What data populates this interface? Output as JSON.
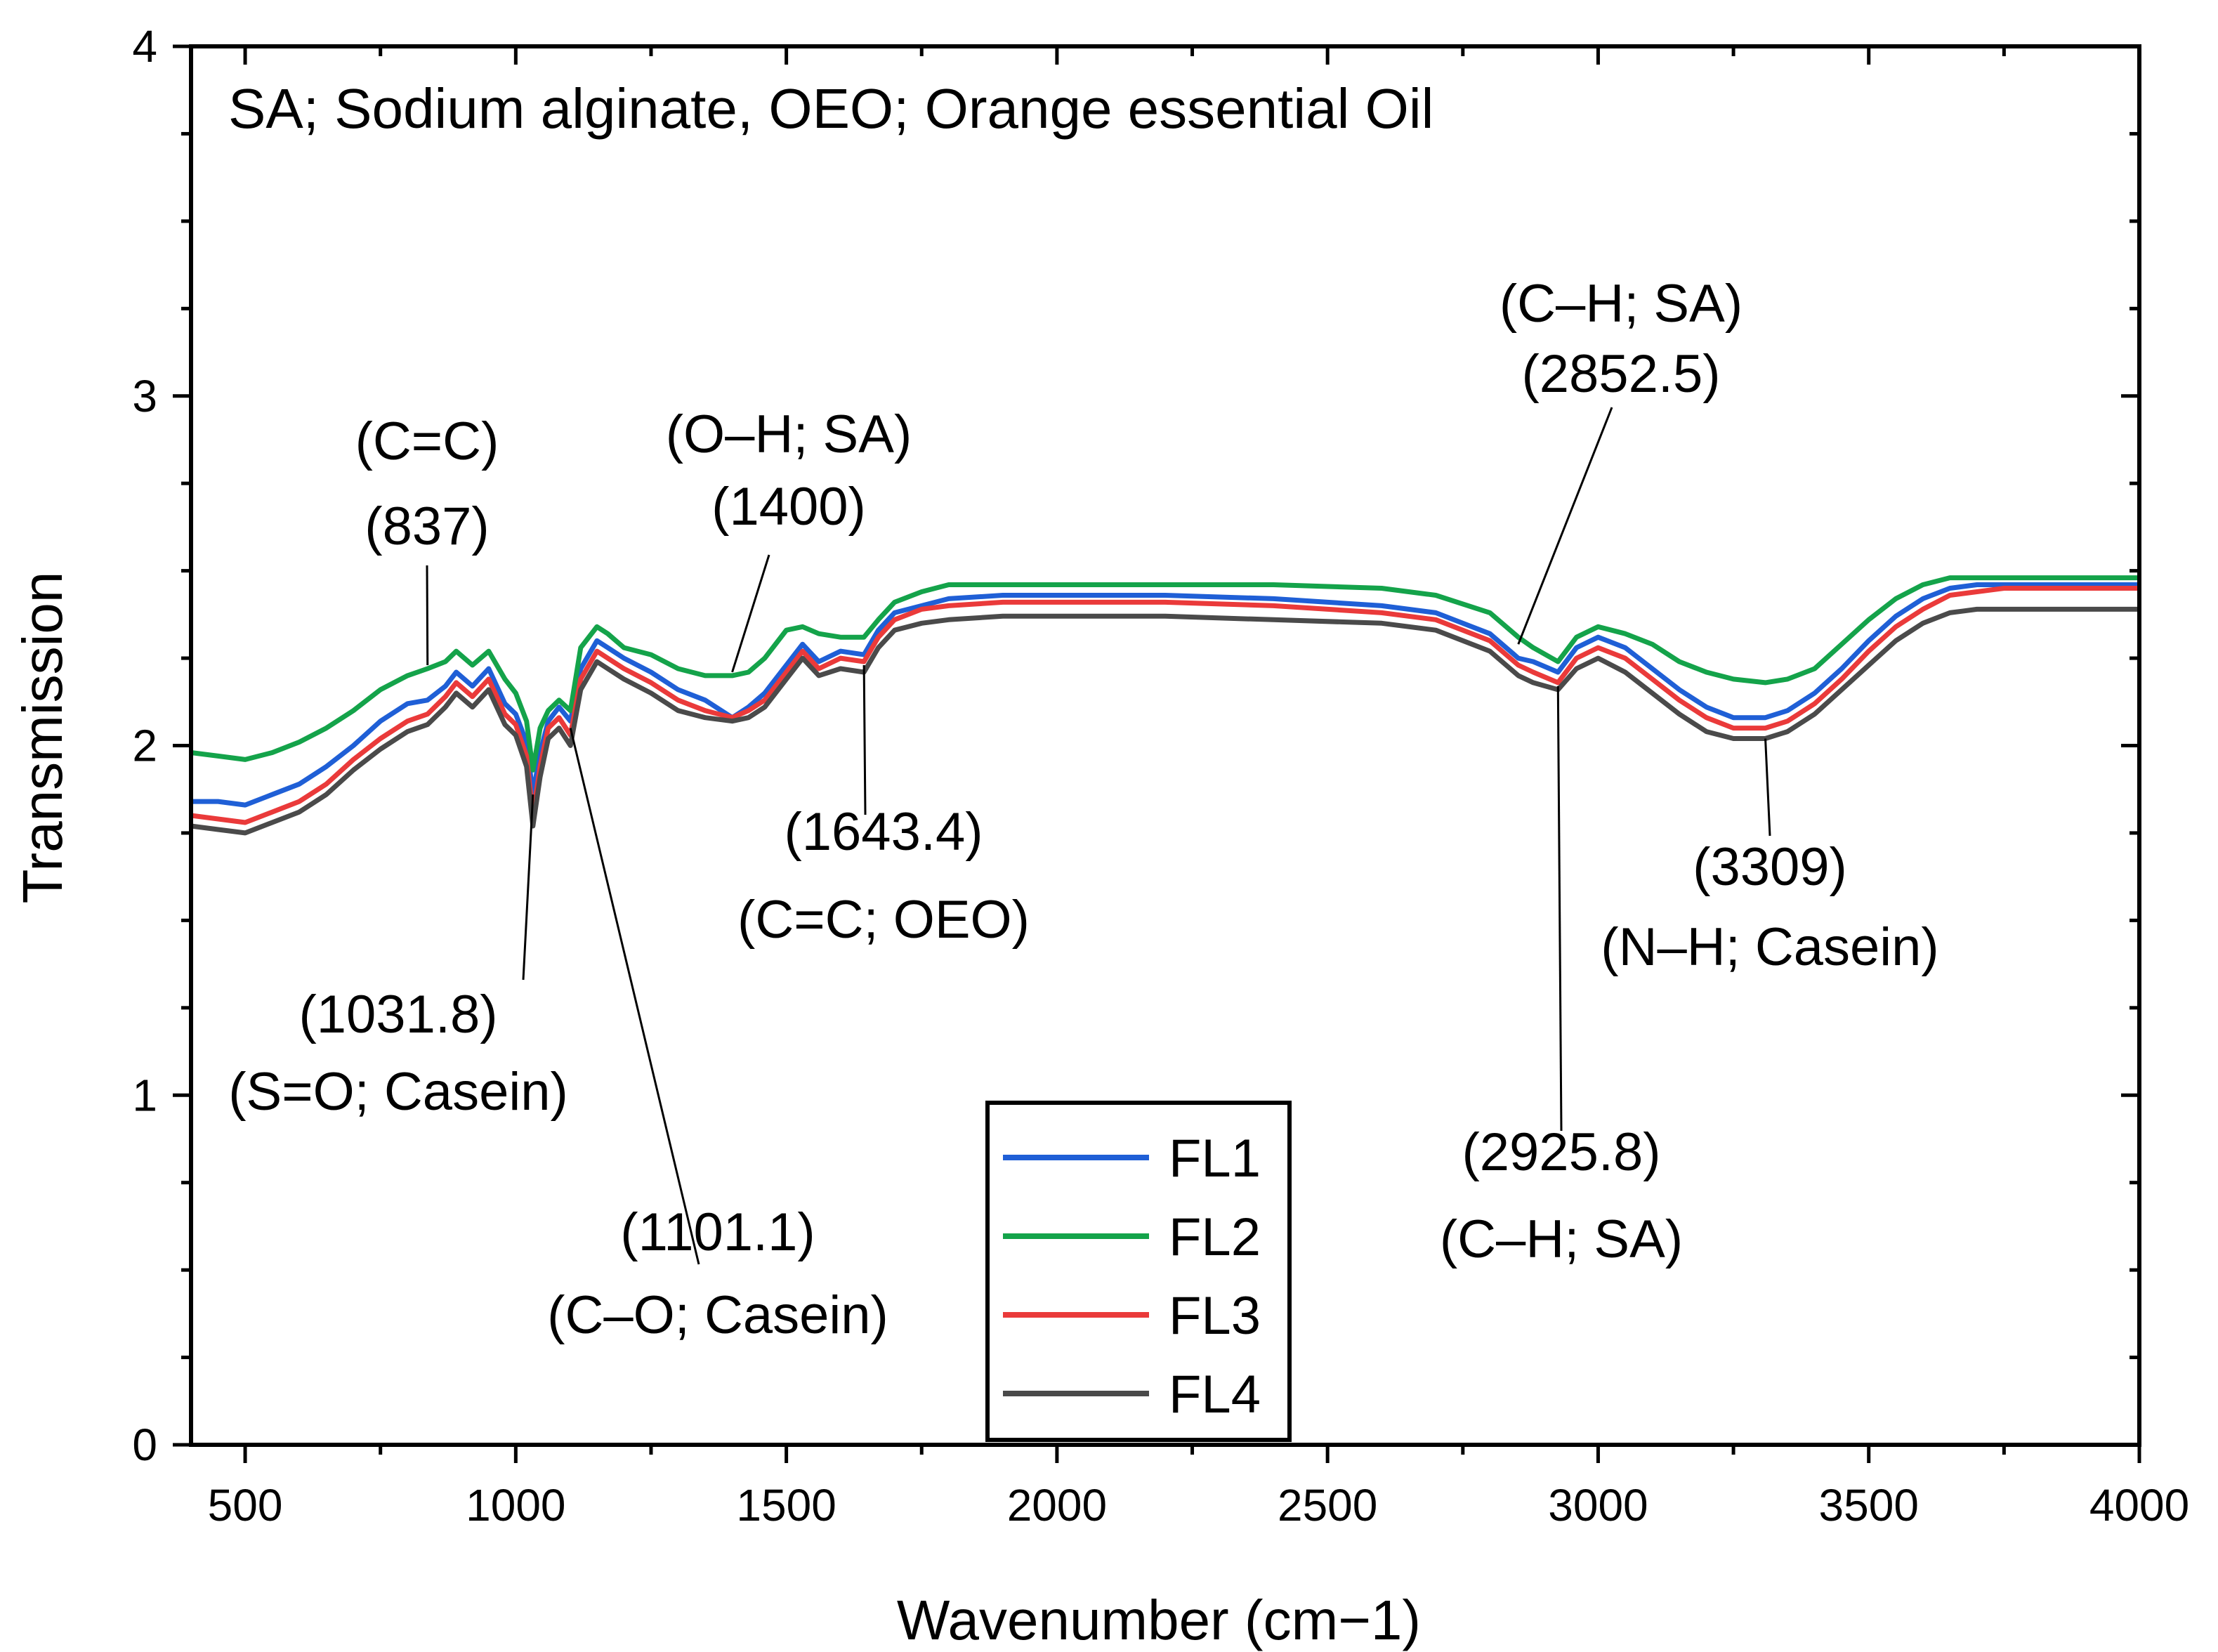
{
  "chart_data": {
    "type": "line",
    "title": "SA; Sodium alginate, OEO; Orange essential Oil",
    "xlabel": "Wavenumber (cm−1)",
    "ylabel": "Transmission",
    "xlim": [
      400,
      4000
    ],
    "ylim": [
      0,
      4
    ],
    "x_ticks": [
      500,
      1000,
      1500,
      2000,
      2500,
      3000,
      3500,
      4000
    ],
    "x_tick_labels": [
      "500",
      "1000",
      "1500",
      "2000",
      "2500",
      "3000",
      "3500",
      "4000"
    ],
    "y_ticks": [
      0,
      1,
      2,
      3,
      4
    ],
    "y_tick_labels": [
      "0",
      "1",
      "2",
      "3",
      "4"
    ],
    "legend_placement": "bottom-center",
    "series": [
      {
        "name": "FL1",
        "color": "#1f5fd6",
        "x": [
          400,
          450,
          500,
          550,
          600,
          650,
          700,
          750,
          800,
          837,
          870,
          890,
          920,
          950,
          980,
          1000,
          1020,
          1031.8,
          1045,
          1060,
          1080,
          1101.1,
          1120,
          1150,
          1170,
          1200,
          1250,
          1300,
          1350,
          1400,
          1430,
          1460,
          1500,
          1530,
          1560,
          1600,
          1643.4,
          1670,
          1700,
          1750,
          1800,
          1900,
          2000,
          2200,
          2400,
          2600,
          2700,
          2800,
          2852.5,
          2880,
          2925.8,
          2960,
          3000,
          3050,
          3100,
          3150,
          3200,
          3250,
          3309,
          3350,
          3400,
          3450,
          3500,
          3550,
          3600,
          3650,
          3700,
          3750,
          3800,
          3850,
          3900,
          3950,
          4000
        ],
        "y": [
          1.84,
          1.84,
          1.83,
          1.86,
          1.89,
          1.94,
          2.0,
          2.07,
          2.12,
          2.13,
          2.17,
          2.21,
          2.17,
          2.22,
          2.12,
          2.09,
          2.01,
          1.86,
          1.98,
          2.07,
          2.11,
          2.07,
          2.22,
          2.3,
          2.28,
          2.25,
          2.21,
          2.16,
          2.13,
          2.08,
          2.11,
          2.15,
          2.23,
          2.29,
          2.24,
          2.27,
          2.26,
          2.33,
          2.38,
          2.4,
          2.42,
          2.43,
          2.43,
          2.43,
          2.42,
          2.4,
          2.38,
          2.32,
          2.25,
          2.24,
          2.21,
          2.28,
          2.31,
          2.28,
          2.22,
          2.16,
          2.11,
          2.08,
          2.08,
          2.1,
          2.15,
          2.22,
          2.3,
          2.37,
          2.42,
          2.45,
          2.46,
          2.46,
          2.46,
          2.46,
          2.46,
          2.46,
          2.46
        ]
      },
      {
        "name": "FL2",
        "color": "#14a34a",
        "x": [
          400,
          450,
          500,
          550,
          600,
          650,
          700,
          750,
          800,
          837,
          870,
          890,
          920,
          950,
          980,
          1000,
          1020,
          1031.8,
          1045,
          1060,
          1080,
          1101.1,
          1120,
          1150,
          1170,
          1200,
          1250,
          1300,
          1350,
          1400,
          1430,
          1460,
          1500,
          1530,
          1560,
          1600,
          1643.4,
          1670,
          1700,
          1750,
          1800,
          1900,
          2000,
          2200,
          2400,
          2600,
          2700,
          2800,
          2852.5,
          2880,
          2925.8,
          2960,
          3000,
          3050,
          3100,
          3150,
          3200,
          3250,
          3309,
          3350,
          3400,
          3450,
          3500,
          3550,
          3600,
          3650,
          3700,
          3750,
          3800,
          3850,
          3900,
          3950,
          4000
        ],
        "y": [
          1.98,
          1.97,
          1.96,
          1.98,
          2.01,
          2.05,
          2.1,
          2.16,
          2.2,
          2.22,
          2.24,
          2.27,
          2.23,
          2.27,
          2.19,
          2.15,
          2.07,
          1.93,
          2.05,
          2.1,
          2.13,
          2.1,
          2.28,
          2.34,
          2.32,
          2.28,
          2.26,
          2.22,
          2.2,
          2.2,
          2.21,
          2.25,
          2.33,
          2.34,
          2.32,
          2.31,
          2.31,
          2.36,
          2.41,
          2.44,
          2.46,
          2.46,
          2.46,
          2.46,
          2.46,
          2.45,
          2.43,
          2.38,
          2.31,
          2.28,
          2.24,
          2.31,
          2.34,
          2.32,
          2.29,
          2.24,
          2.21,
          2.19,
          2.18,
          2.19,
          2.22,
          2.29,
          2.36,
          2.42,
          2.46,
          2.48,
          2.48,
          2.48,
          2.48,
          2.48,
          2.48,
          2.48,
          2.48
        ]
      },
      {
        "name": "FL3",
        "color": "#ea3a3a",
        "x": [
          400,
          450,
          500,
          550,
          600,
          650,
          700,
          750,
          800,
          837,
          870,
          890,
          920,
          950,
          980,
          1000,
          1020,
          1031.8,
          1045,
          1060,
          1080,
          1101.1,
          1120,
          1150,
          1170,
          1200,
          1250,
          1300,
          1350,
          1400,
          1430,
          1460,
          1500,
          1530,
          1560,
          1600,
          1643.4,
          1670,
          1700,
          1750,
          1800,
          1900,
          2000,
          2200,
          2400,
          2600,
          2700,
          2800,
          2852.5,
          2880,
          2925.8,
          2960,
          3000,
          3050,
          3100,
          3150,
          3200,
          3250,
          3309,
          3350,
          3400,
          3450,
          3500,
          3550,
          3600,
          3650,
          3700,
          3750,
          3800,
          3850,
          3900,
          3950,
          4000
        ],
        "y": [
          1.8,
          1.79,
          1.78,
          1.81,
          1.84,
          1.89,
          1.96,
          2.02,
          2.07,
          2.09,
          2.14,
          2.18,
          2.14,
          2.19,
          2.09,
          2.06,
          1.97,
          1.8,
          1.94,
          2.05,
          2.08,
          2.03,
          2.19,
          2.27,
          2.25,
          2.22,
          2.18,
          2.13,
          2.1,
          2.08,
          2.1,
          2.13,
          2.21,
          2.27,
          2.22,
          2.25,
          2.24,
          2.31,
          2.36,
          2.39,
          2.4,
          2.41,
          2.41,
          2.41,
          2.4,
          2.38,
          2.36,
          2.3,
          2.23,
          2.21,
          2.18,
          2.25,
          2.28,
          2.25,
          2.19,
          2.13,
          2.08,
          2.05,
          2.05,
          2.07,
          2.12,
          2.19,
          2.27,
          2.34,
          2.39,
          2.43,
          2.44,
          2.45,
          2.45,
          2.45,
          2.45,
          2.45,
          2.45
        ]
      },
      {
        "name": "FL4",
        "color": "#4a4a4a",
        "x": [
          400,
          450,
          500,
          550,
          600,
          650,
          700,
          750,
          800,
          837,
          870,
          890,
          920,
          950,
          980,
          1000,
          1020,
          1031.8,
          1045,
          1060,
          1080,
          1101.1,
          1120,
          1150,
          1170,
          1200,
          1250,
          1300,
          1350,
          1400,
          1430,
          1460,
          1500,
          1530,
          1560,
          1600,
          1643.4,
          1670,
          1700,
          1750,
          1800,
          1900,
          2000,
          2200,
          2400,
          2600,
          2700,
          2800,
          2852.5,
          2880,
          2925.8,
          2960,
          3000,
          3050,
          3100,
          3150,
          3200,
          3250,
          3309,
          3350,
          3400,
          3450,
          3500,
          3550,
          3600,
          3650,
          3700,
          3750,
          3800,
          3850,
          3900,
          3950,
          4000
        ],
        "y": [
          1.77,
          1.76,
          1.75,
          1.78,
          1.81,
          1.86,
          1.93,
          1.99,
          2.04,
          2.06,
          2.11,
          2.15,
          2.11,
          2.16,
          2.06,
          2.03,
          1.94,
          1.77,
          1.91,
          2.02,
          2.05,
          2.0,
          2.16,
          2.24,
          2.22,
          2.19,
          2.15,
          2.1,
          2.08,
          2.07,
          2.08,
          2.11,
          2.19,
          2.25,
          2.2,
          2.22,
          2.21,
          2.28,
          2.33,
          2.35,
          2.36,
          2.37,
          2.37,
          2.37,
          2.36,
          2.35,
          2.33,
          2.27,
          2.2,
          2.18,
          2.16,
          2.22,
          2.25,
          2.21,
          2.15,
          2.09,
          2.04,
          2.02,
          2.02,
          2.04,
          2.09,
          2.16,
          2.23,
          2.3,
          2.35,
          2.38,
          2.39,
          2.39,
          2.39,
          2.39,
          2.39,
          2.39,
          2.39
        ]
      }
    ],
    "annotations": [
      {
        "lines": [
          "(C=C)",
          "(837)"
        ],
        "x": 837,
        "y": 2.23
      },
      {
        "lines": [
          "(O–H; SA)",
          "(1400)"
        ],
        "x": 1400,
        "y": 2.21
      },
      {
        "lines": [
          "(1031.8)",
          "(S=O; Casein)"
        ],
        "x": 1031.8,
        "y": 1.86
      },
      {
        "lines": [
          "(1101.1)",
          "(C–O; Casein)"
        ],
        "x": 1101.1,
        "y": 2.05
      },
      {
        "lines": [
          "(1643.4)",
          "(C=C; OEO)"
        ],
        "x": 1643.4,
        "y": 2.23
      },
      {
        "lines": [
          "(C–H; SA)",
          "(2852.5)"
        ],
        "x": 2852.5,
        "y": 2.29
      },
      {
        "lines": [
          "(2925.8)",
          "(C–H; SA)"
        ],
        "x": 2925.8,
        "y": 2.17
      },
      {
        "lines": [
          "(3309)",
          "(N–H; Casein)"
        ],
        "x": 3309,
        "y": 2.02
      }
    ]
  }
}
